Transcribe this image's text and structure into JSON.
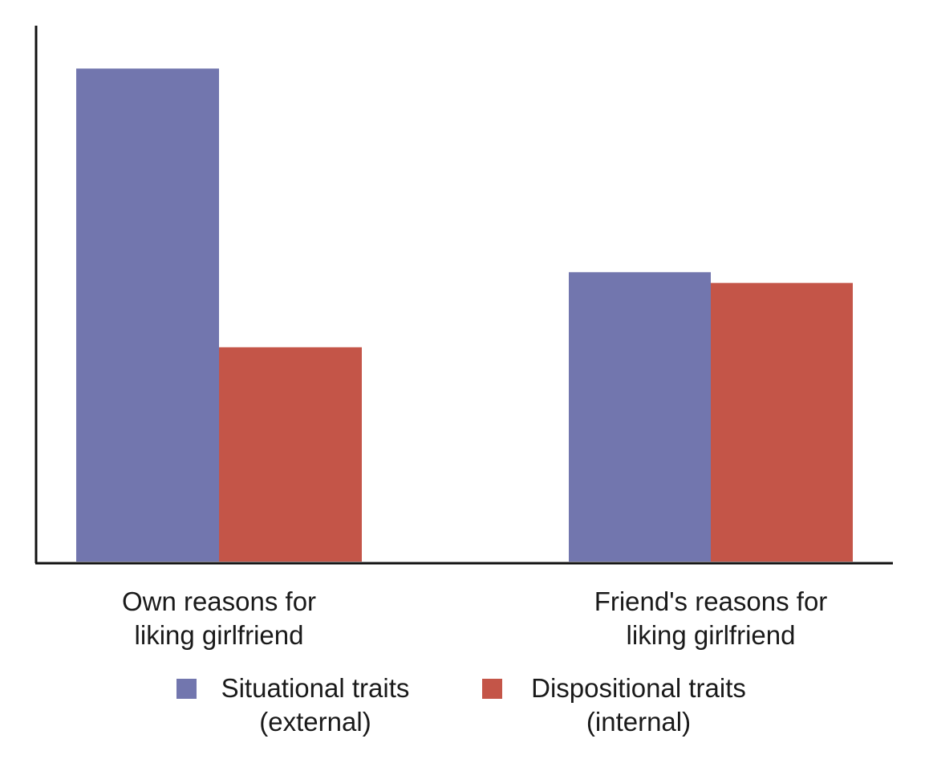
{
  "chart_data": {
    "type": "bar",
    "title": "",
    "xlabel": "",
    "ylabel": "",
    "categories": [
      [
        "Own reasons for",
        "liking girlfriend"
      ],
      [
        "Friend's reasons for",
        "liking girlfriend"
      ]
    ],
    "series": [
      {
        "name": [
          "Situational traits",
          "(external)"
        ],
        "color": "#7276ae",
        "values": [
          92,
          54
        ]
      },
      {
        "name": [
          "Dispositional traits",
          "(internal)"
        ],
        "color": "#c45548",
        "values": [
          40,
          52
        ]
      }
    ],
    "ylim": [
      0,
      100
    ],
    "grid": false,
    "legend_position": "bottom"
  }
}
